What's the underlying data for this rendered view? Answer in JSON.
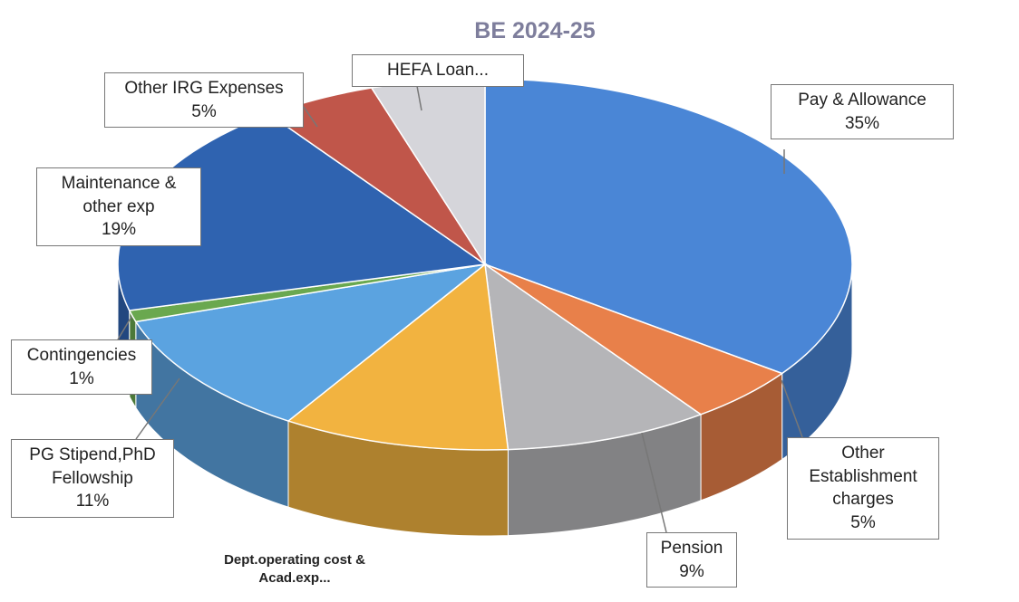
{
  "chart_data": {
    "type": "pie",
    "title": "BE 2024-25",
    "categories": [
      "Pay & Allowance",
      "Other Establishment charges",
      "Pension",
      "Dept.operating cost & Acad.exp...",
      "PG Stipend,PhD Fellowship",
      "Contingencies",
      "Maintenance & other exp",
      "Other IRG Expenses",
      "HEFA Loan..."
    ],
    "values": [
      35,
      5,
      9,
      10,
      11,
      1,
      19,
      5,
      5
    ],
    "value_labels": [
      "35%",
      "5%",
      "9%",
      null,
      "11%",
      "1%",
      "19%",
      "5%",
      null
    ],
    "colors": [
      "#4a86d6",
      "#e8804a",
      "#b5b5b8",
      "#f2b340",
      "#5ba3e0",
      "#6aa84f",
      "#2f63b0",
      "#c0564a",
      "#d5d5da"
    ]
  }
}
